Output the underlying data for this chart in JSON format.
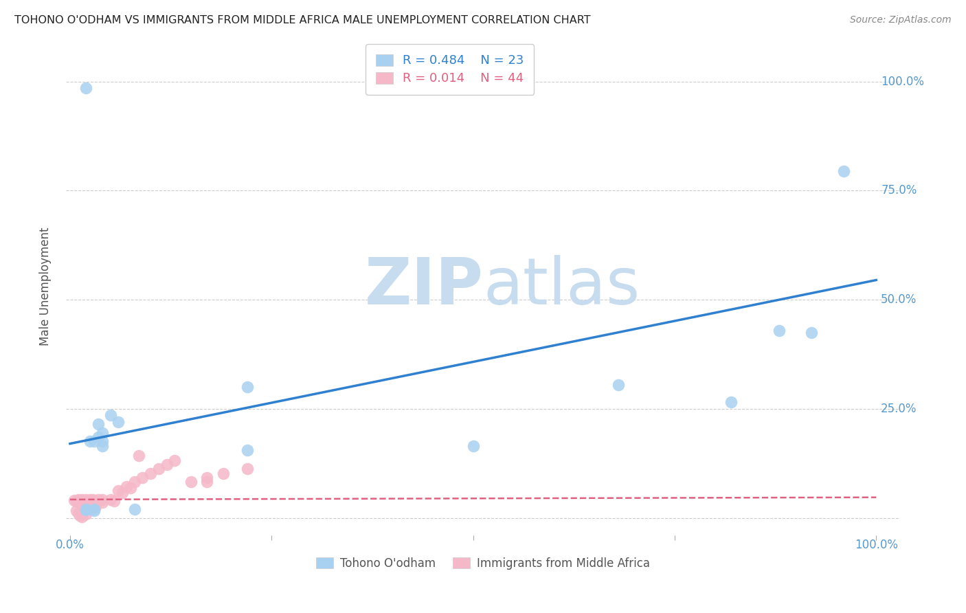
{
  "title": "TOHONO O'ODHAM VS IMMIGRANTS FROM MIDDLE AFRICA MALE UNEMPLOYMENT CORRELATION CHART",
  "source": "Source: ZipAtlas.com",
  "ylabel": "Male Unemployment",
  "legend_blue_r": "0.484",
  "legend_blue_n": "23",
  "legend_pink_r": "0.014",
  "legend_pink_n": "44",
  "blue_color": "#A8D0F0",
  "pink_color": "#F5B8C8",
  "blue_line_color": "#3080D0",
  "pink_line_color": "#E06080",
  "watermark_zip": "ZIP",
  "watermark_atlas": "atlas",
  "blue_scatter_x": [
    0.05,
    0.035,
    0.04,
    0.025,
    0.035,
    0.04,
    0.06,
    0.04,
    0.03,
    0.22,
    0.22,
    0.5,
    0.68,
    0.82,
    0.88,
    0.92,
    0.96,
    0.02,
    0.03,
    0.08,
    0.02,
    0.02,
    0.03
  ],
  "blue_scatter_y": [
    0.235,
    0.215,
    0.195,
    0.175,
    0.185,
    0.175,
    0.22,
    0.165,
    0.175,
    0.3,
    0.155,
    0.165,
    0.305,
    0.265,
    0.43,
    0.425,
    0.795,
    0.985,
    0.02,
    0.02,
    0.02,
    0.018,
    0.016
  ],
  "pink_scatter_x": [
    0.005,
    0.008,
    0.01,
    0.01,
    0.012,
    0.015,
    0.015,
    0.018,
    0.02,
    0.02,
    0.022,
    0.022,
    0.025,
    0.025,
    0.028,
    0.03,
    0.03,
    0.032,
    0.035,
    0.04,
    0.04,
    0.05,
    0.055,
    0.06,
    0.065,
    0.07,
    0.075,
    0.08,
    0.09,
    0.1,
    0.11,
    0.12,
    0.13,
    0.15,
    0.17,
    0.19,
    0.22,
    0.008,
    0.01,
    0.012,
    0.015,
    0.02,
    0.085,
    0.17
  ],
  "pink_scatter_y": [
    0.04,
    0.038,
    0.042,
    0.036,
    0.038,
    0.042,
    0.036,
    0.038,
    0.042,
    0.035,
    0.028,
    0.022,
    0.042,
    0.036,
    0.042,
    0.038,
    0.032,
    0.026,
    0.042,
    0.042,
    0.036,
    0.042,
    0.038,
    0.062,
    0.058,
    0.072,
    0.068,
    0.082,
    0.092,
    0.102,
    0.112,
    0.122,
    0.132,
    0.082,
    0.092,
    0.102,
    0.112,
    0.016,
    0.01,
    0.006,
    0.002,
    0.008,
    0.142,
    0.082
  ],
  "blue_line_x0": 0.0,
  "blue_line_x1": 1.0,
  "blue_line_y0": 0.17,
  "blue_line_y1": 0.545,
  "pink_line_x0": 0.0,
  "pink_line_x1": 1.0,
  "pink_line_y0": 0.042,
  "pink_line_y1": 0.047,
  "background_color": "#ffffff",
  "grid_color": "#cccccc",
  "title_color": "#222222",
  "axis_label_color": "#5599CC",
  "watermark_color_zip": "#C8DCF0",
  "watermark_color_atlas": "#C8DCF0",
  "y_ticks": [
    0.0,
    0.25,
    0.5,
    0.75,
    1.0
  ],
  "xlim_min": -0.005,
  "xlim_max": 1.03,
  "ylim_min": -0.04,
  "ylim_max": 1.1
}
